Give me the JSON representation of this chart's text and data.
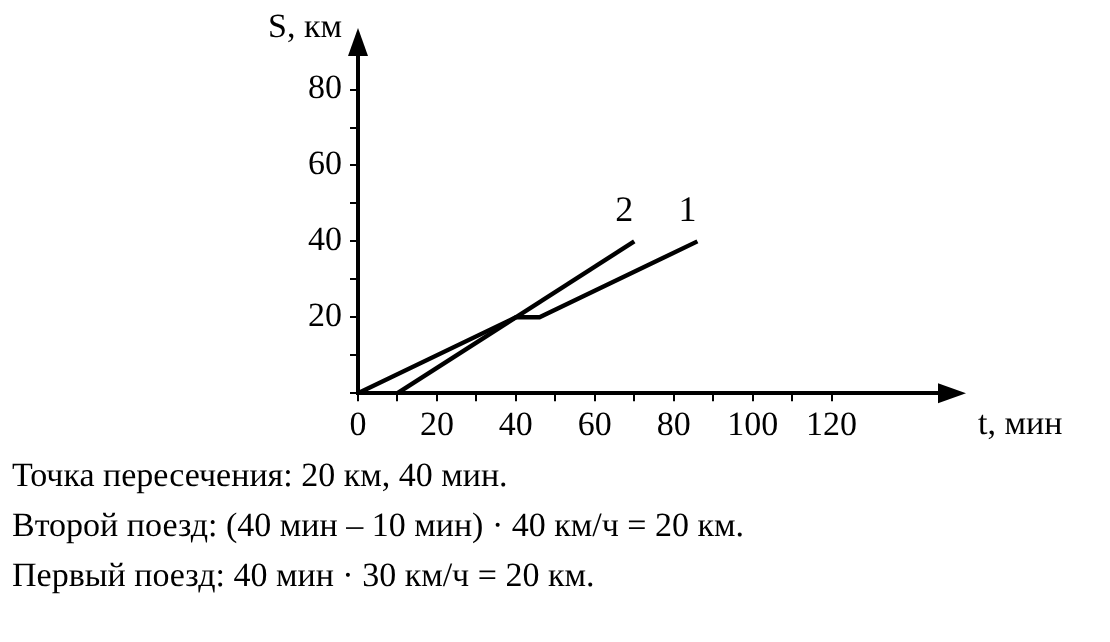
{
  "chart_data": {
    "type": "line",
    "xlabel": "t, мин",
    "ylabel": "S, км",
    "marker": "none",
    "line_style": "solid",
    "series": [
      {
        "name": "1",
        "color": "#000000",
        "x": [
          0,
          40,
          46,
          86
        ],
        "values": [
          0,
          20,
          20,
          40
        ]
      },
      {
        "name": "2",
        "color": "#000000",
        "x": [
          10,
          70
        ],
        "values": [
          0,
          40
        ]
      }
    ],
    "xlim": [
      0,
      150
    ],
    "ylim": [
      0,
      92
    ],
    "xticks": [
      0,
      {
        "value": 10,
        "label": null
      },
      20,
      {
        "value": 30,
        "label": null
      },
      40,
      {
        "value": 50,
        "label": null
      },
      60,
      {
        "value": 70,
        "label": null
      },
      80,
      {
        "value": 90,
        "label": null
      },
      100,
      {
        "value": 110,
        "label": null
      },
      120
    ],
    "yticks": [
      {
        "value": 0,
        "label": null
      },
      {
        "value": 10,
        "label": null
      },
      20,
      {
        "value": 30,
        "label": null
      },
      40,
      {
        "value": 50,
        "label": null
      },
      60,
      {
        "value": 70,
        "label": null
      },
      80
    ],
    "annotations": [
      "Точка пересечения: 20 км, 40 мин.",
      "Второй поезд: (40 мин – 10 мин) · 40 км/ч = 20 км.",
      "Первый поезд: 40 мин · 30 км/ч = 20 км."
    ]
  }
}
